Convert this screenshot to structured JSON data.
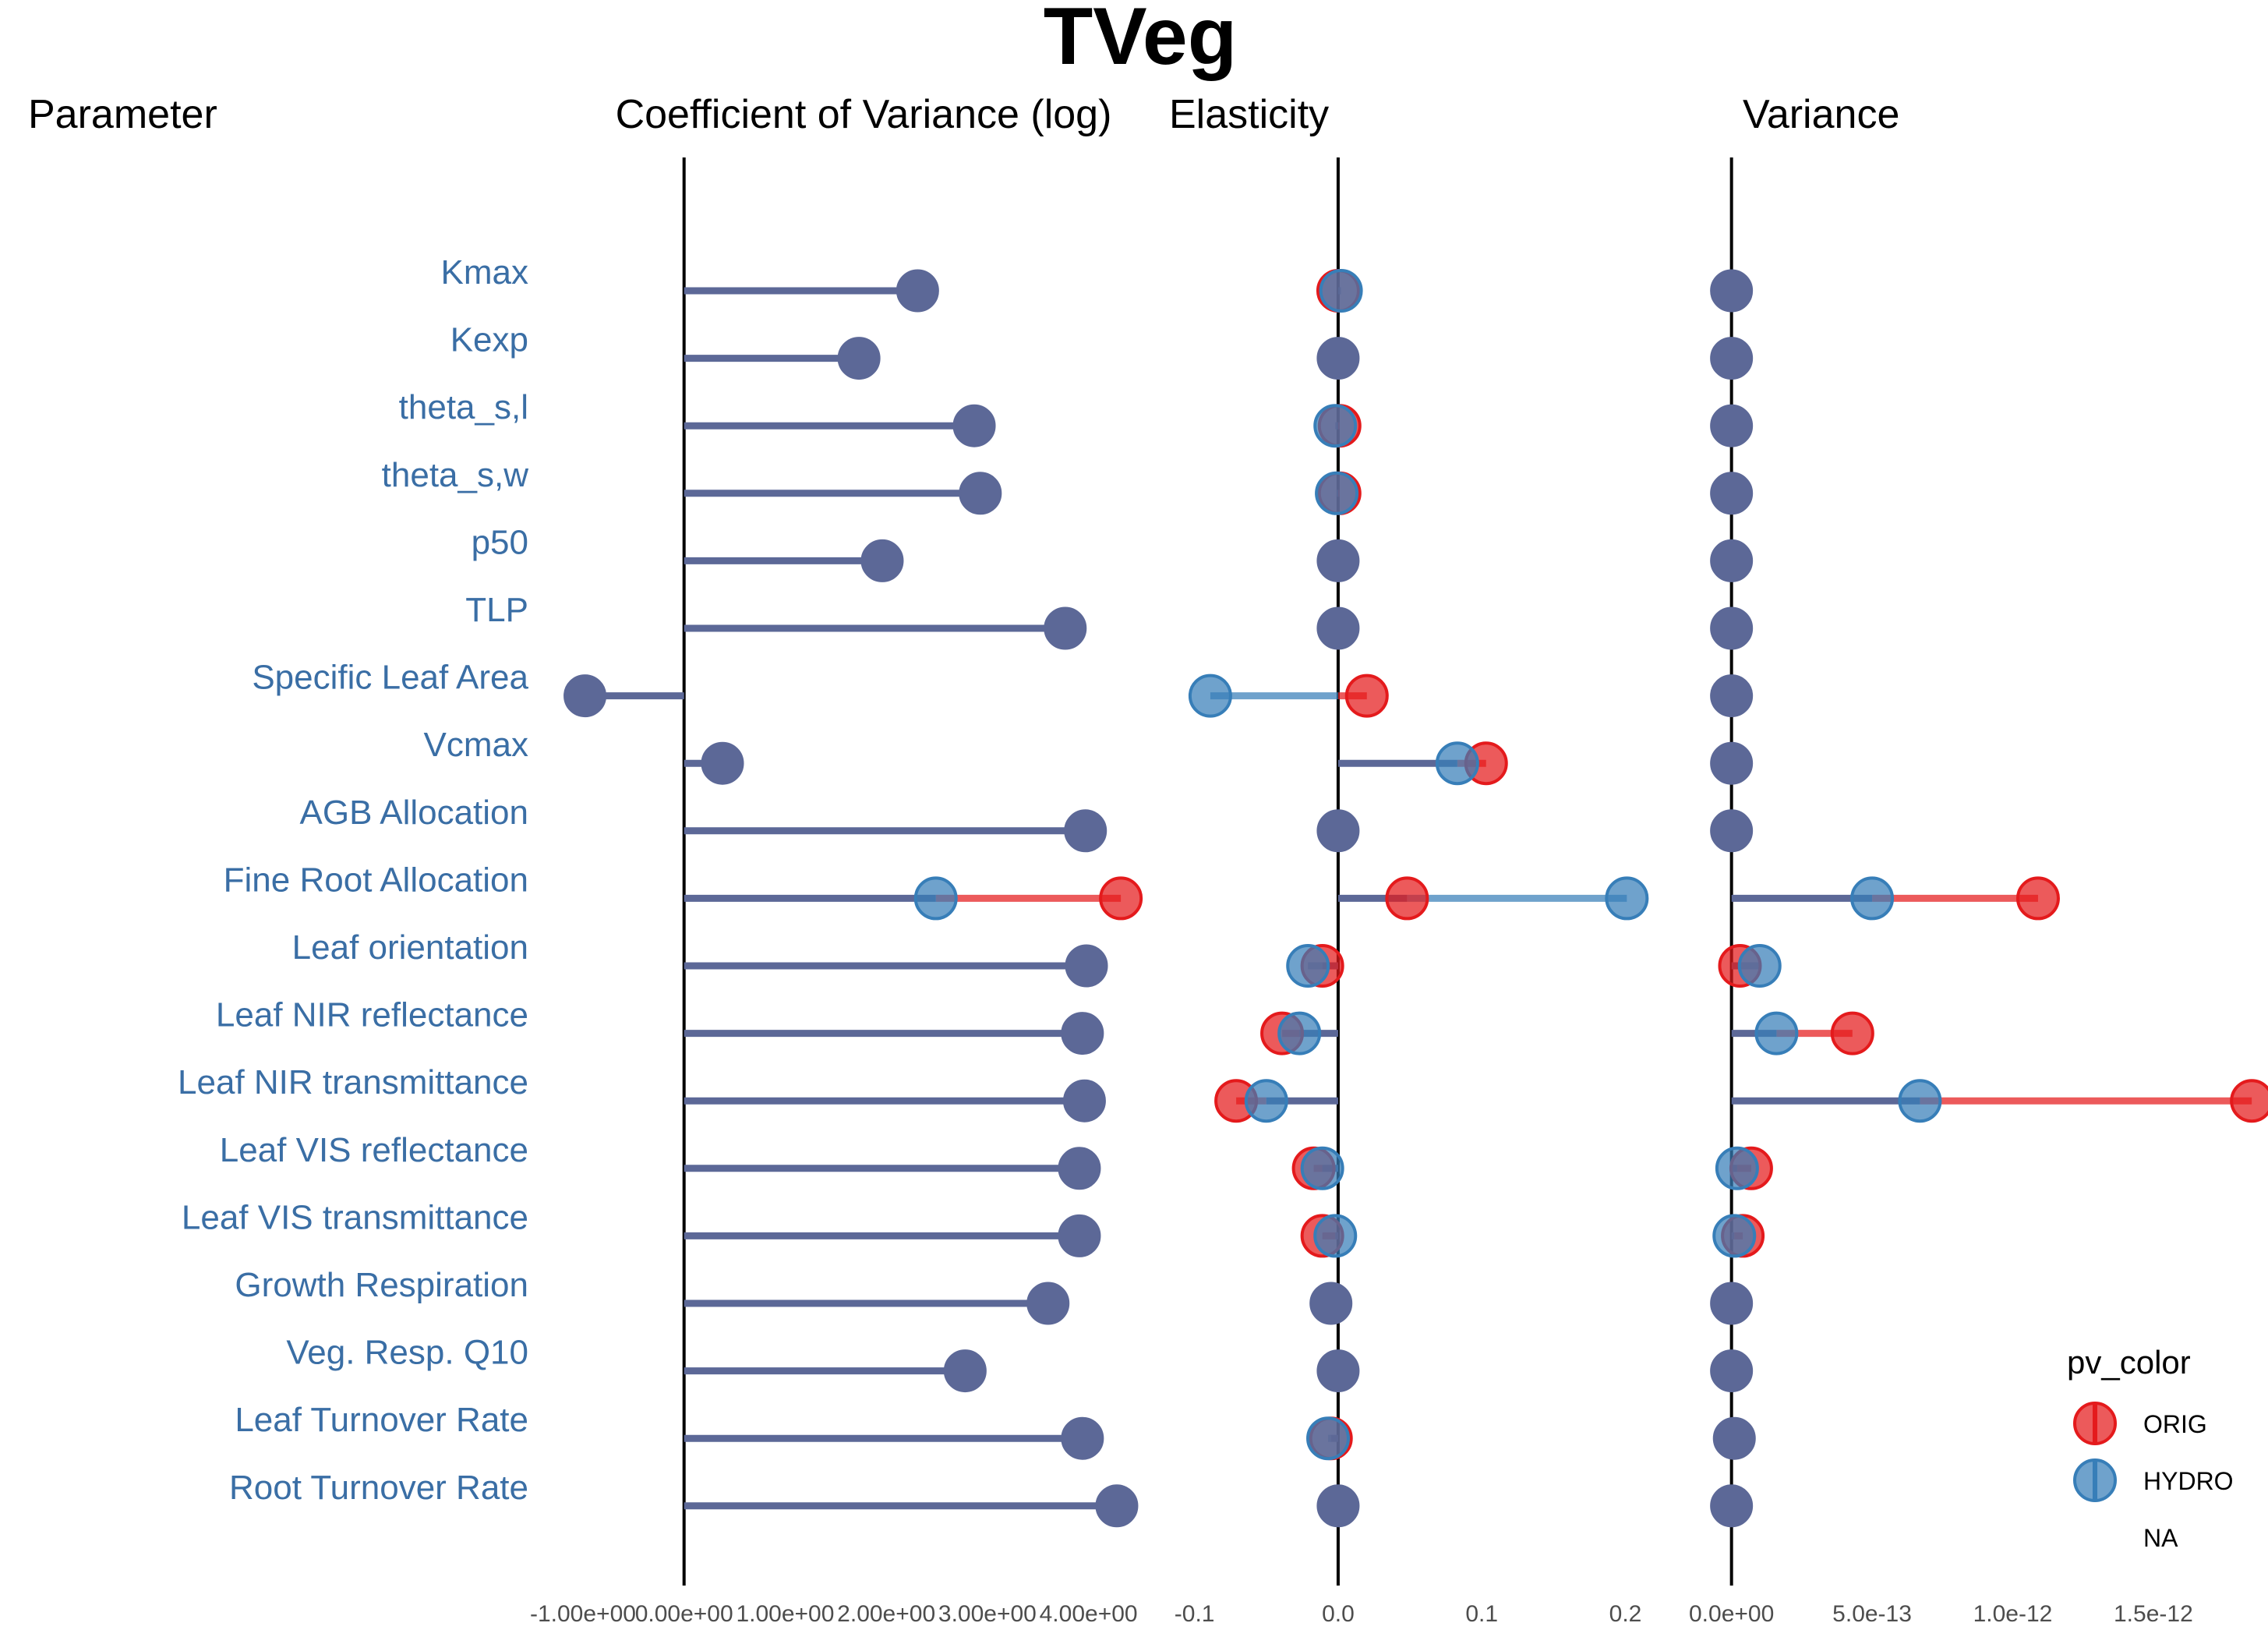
{
  "chart_data": {
    "type": "lollipop",
    "title": "TVeg",
    "parameter_header": "Parameter",
    "parameters": [
      "Kmax",
      "Kexp",
      "theta_s,l",
      "theta_s,w",
      "p50",
      "TLP",
      "Specific Leaf Area",
      "Vcmax",
      "AGB Allocation",
      "Fine Root Allocation",
      "Leaf orientation",
      "Leaf NIR reflectance",
      "Leaf NIR transmittance",
      "Leaf VIS reflectance",
      "Leaf VIS transmittance",
      "Growth Respiration",
      "Veg. Resp. Q10",
      "Leaf Turnover Rate",
      "Root Turnover Rate",
      ""
    ],
    "panels": [
      {
        "title": "Coefficient of Variance (log)",
        "tick_labels": [
          "-1.00e+00",
          "0.00e+00",
          "1.00e+00",
          "2.00e+00",
          "3.00e+00",
          "4.00e+00"
        ],
        "tick_values": [
          -1,
          0,
          1,
          2,
          3,
          4
        ],
        "xlim": [
          -1.1,
          4.45
        ],
        "series": [
          {
            "name": "ORIG",
            "values": [
              2.31,
              1.73,
              2.87,
              2.93,
              1.96,
              3.77,
              -0.98,
              0.38,
              3.97,
              4.32,
              3.98,
              3.94,
              3.96,
              3.91,
              3.91,
              3.6,
              2.78,
              3.94,
              4.28,
              null
            ]
          },
          {
            "name": "HYDRO",
            "values": [
              2.31,
              1.73,
              2.87,
              2.93,
              1.96,
              3.77,
              -0.98,
              0.38,
              3.97,
              2.49,
              3.98,
              3.94,
              3.96,
              3.91,
              3.91,
              3.6,
              2.78,
              3.94,
              4.28,
              null
            ]
          }
        ]
      },
      {
        "title": "Elasticity",
        "tick_labels": [
          "-0.1",
          "0.0",
          "0.1",
          "0.2"
        ],
        "tick_values": [
          -0.1,
          0.0,
          0.1,
          0.2
        ],
        "xlim": [
          -0.115,
          0.235
        ],
        "series": [
          {
            "name": "ORIG",
            "values": [
              0.0,
              0.0,
              0.001,
              0.001,
              0.0,
              0.0,
              0.02,
              0.103,
              0.0,
              0.048,
              -0.011,
              -0.039,
              -0.071,
              -0.017,
              -0.011,
              -0.005,
              0.0,
              -0.005,
              0.0,
              null
            ]
          },
          {
            "name": "HYDRO",
            "values": [
              0.002,
              0.0,
              -0.002,
              -0.001,
              0.0,
              0.0,
              -0.089,
              0.083,
              0.0,
              0.201,
              -0.021,
              -0.027,
              -0.05,
              -0.011,
              -0.002,
              -0.005,
              0.0,
              -0.007,
              0.0,
              null
            ]
          }
        ]
      },
      {
        "title": "Variance",
        "tick_labels": [
          "0.0e+00",
          "5.0e-13",
          "1.0e-12",
          "1.5e-12"
        ],
        "tick_values": [
          0,
          5e-13,
          1e-12,
          1.5e-12
        ],
        "xlim": [
          -6e-14,
          1.88e-12
        ],
        "series": [
          {
            "name": "ORIG",
            "values": [
              0,
              0,
              0,
              0,
              0,
              0,
              0,
              0,
              0,
              1.09e-12,
              3e-14,
              4.3e-13,
              1.85e-12,
              7e-14,
              4e-14,
              0,
              0,
              1e-14,
              0,
              null
            ]
          },
          {
            "name": "HYDRO",
            "values": [
              0,
              0,
              0,
              0,
              0,
              0,
              0,
              0,
              0,
              5e-13,
              1e-13,
              1.6e-13,
              6.7e-13,
              2e-14,
              1e-14,
              0,
              0,
              1e-14,
              0,
              null
            ]
          }
        ]
      }
    ],
    "legend": {
      "title": "pv_color",
      "position": "bottom-right",
      "entries": [
        {
          "label": "ORIG",
          "color": "#E41A1C"
        },
        {
          "label": "HYDRO",
          "color": "#377EB8"
        },
        {
          "label": "NA",
          "color": null
        }
      ]
    },
    "colors": {
      "orig": "#E41A1C",
      "hydro": "#377EB8",
      "overlap": "#5C6897",
      "label_text": "#3A6EA5"
    }
  }
}
